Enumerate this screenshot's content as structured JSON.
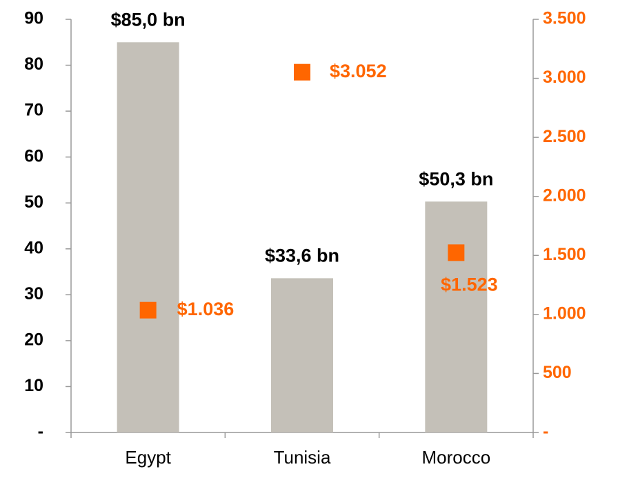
{
  "chart_data": {
    "type": "bar",
    "categories": [
      "Egypt",
      "Tunisia",
      "Morocco"
    ],
    "series": [
      {
        "type": "bar",
        "color": "#c4c0b8",
        "values": [
          85.0,
          33.6,
          50.3
        ],
        "value_labels": [
          "$85,0 bn",
          "$33,6 bn",
          "$50,3 bn"
        ],
        "label_color": "#000000"
      },
      {
        "type": "scatter",
        "axis": "y2",
        "color": "#ff6600",
        "values": [
          1036,
          3052,
          1523
        ],
        "value_labels": [
          "$1.036",
          "$3.052",
          "$1.523"
        ],
        "label_color": "#ff6600"
      }
    ],
    "ylim": [
      0,
      90
    ],
    "yticks": [
      {
        "value": 0,
        "label": "-"
      },
      10,
      20,
      30,
      40,
      50,
      60,
      70,
      80,
      90
    ],
    "y2lim": [
      0,
      3500
    ],
    "y2ticks": [
      {
        "value": 0,
        "label": "-"
      },
      500,
      {
        "value": 1000,
        "label": "1.000"
      },
      {
        "value": 1500,
        "label": "1.500"
      },
      {
        "value": 2000,
        "label": "2.000"
      },
      {
        "value": 2500,
        "label": "2.500"
      },
      {
        "value": 3000,
        "label": "3.000"
      },
      {
        "value": 3500,
        "label": "3.500"
      }
    ],
    "y2_color": "#ff6600",
    "grid": false
  }
}
